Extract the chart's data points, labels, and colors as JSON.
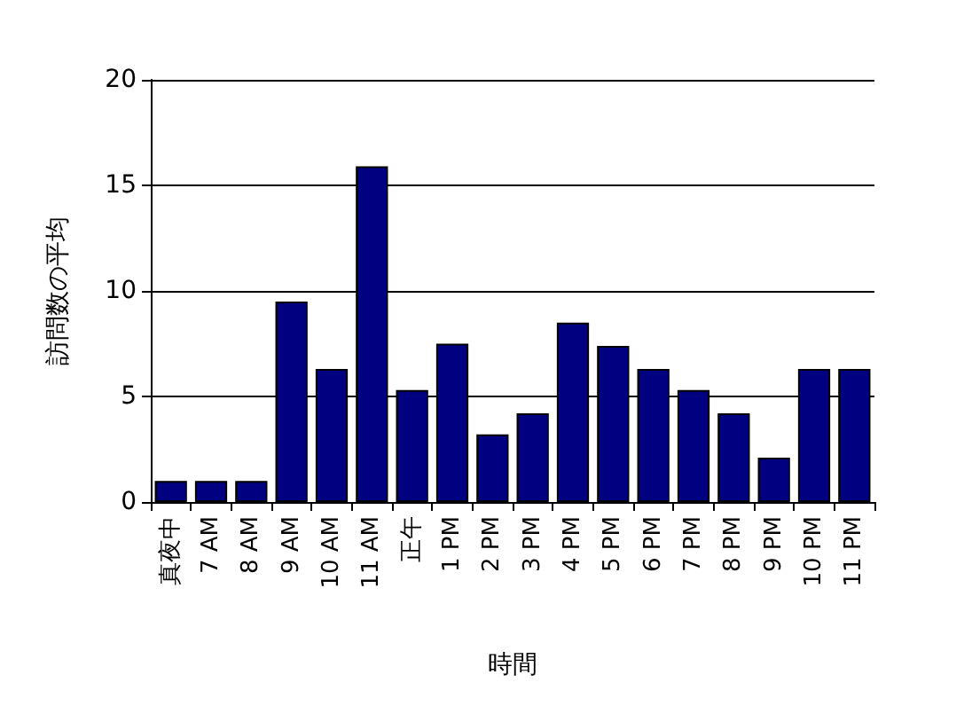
{
  "chart_data": {
    "type": "bar",
    "xlabel": "時間",
    "ylabel": "訪問数の平均",
    "categories": [
      "真夜中",
      "7 AM",
      "8 AM",
      "9 AM",
      "10 AM",
      "11 AM",
      "正午",
      "1 PM",
      "2 PM",
      "3 PM",
      "4 PM",
      "5 PM",
      "6 PM",
      "7 PM",
      "8 PM",
      "9 PM",
      "10 PM",
      "11 PM"
    ],
    "values": [
      1,
      1,
      1,
      9.5,
      6.3,
      15.9,
      5.3,
      7.5,
      3.2,
      4.2,
      8.5,
      7.4,
      6.3,
      5.3,
      4.2,
      2.1,
      6.3,
      6.3
    ],
    "color": "#000080",
    "ylim": [
      0,
      20
    ],
    "yticks": [
      0,
      5,
      10,
      15,
      20
    ],
    "grid": "y"
  }
}
